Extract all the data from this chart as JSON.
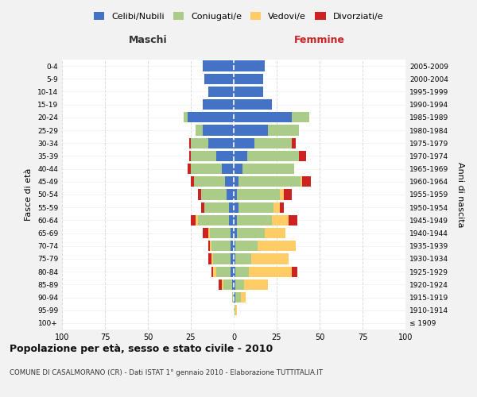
{
  "age_groups": [
    "100+",
    "95-99",
    "90-94",
    "85-89",
    "80-84",
    "75-79",
    "70-74",
    "65-69",
    "60-64",
    "55-59",
    "50-54",
    "45-49",
    "40-44",
    "35-39",
    "30-34",
    "25-29",
    "20-24",
    "15-19",
    "10-14",
    "5-9",
    "0-4"
  ],
  "birth_years": [
    "≤ 1909",
    "1910-1914",
    "1915-1919",
    "1920-1924",
    "1925-1929",
    "1930-1934",
    "1935-1939",
    "1940-1944",
    "1945-1949",
    "1950-1954",
    "1955-1959",
    "1960-1964",
    "1965-1969",
    "1970-1974",
    "1975-1979",
    "1980-1984",
    "1985-1989",
    "1990-1994",
    "1995-1999",
    "2000-2004",
    "2005-2009"
  ],
  "colors": {
    "celibi": "#4472C4",
    "coniugati": "#AACC88",
    "vedovi": "#FFCC66",
    "divorziati": "#CC2222"
  },
  "males": {
    "celibi": [
      0,
      0,
      0,
      1,
      2,
      2,
      2,
      2,
      3,
      3,
      4,
      5,
      7,
      10,
      15,
      18,
      27,
      18,
      15,
      17,
      18
    ],
    "coniugati": [
      0,
      0,
      1,
      5,
      8,
      10,
      11,
      12,
      18,
      14,
      15,
      18,
      18,
      15,
      10,
      4,
      2,
      0,
      0,
      0,
      0
    ],
    "vedovi": [
      0,
      0,
      0,
      1,
      2,
      1,
      1,
      1,
      1,
      0,
      0,
      0,
      0,
      0,
      0,
      0,
      0,
      0,
      0,
      0,
      0
    ],
    "divorziati": [
      0,
      0,
      0,
      2,
      1,
      2,
      1,
      3,
      3,
      2,
      2,
      2,
      2,
      1,
      1,
      0,
      0,
      0,
      0,
      0,
      0
    ]
  },
  "females": {
    "celibi": [
      0,
      0,
      1,
      1,
      1,
      1,
      1,
      2,
      2,
      3,
      2,
      3,
      5,
      8,
      12,
      20,
      34,
      22,
      17,
      17,
      18
    ],
    "coniugati": [
      0,
      1,
      3,
      5,
      8,
      9,
      13,
      16,
      20,
      20,
      25,
      36,
      30,
      30,
      22,
      18,
      10,
      0,
      0,
      0,
      0
    ],
    "vedovi": [
      0,
      1,
      3,
      14,
      25,
      22,
      22,
      12,
      10,
      4,
      2,
      1,
      0,
      0,
      0,
      0,
      0,
      0,
      0,
      0,
      0
    ],
    "divorziati": [
      0,
      0,
      0,
      0,
      3,
      0,
      0,
      0,
      5,
      2,
      5,
      5,
      0,
      4,
      2,
      0,
      0,
      0,
      0,
      0,
      0
    ]
  },
  "xlim": 100,
  "title": "Popolazione per età, sesso e stato civile - 2010",
  "subtitle": "COMUNE DI CASALMORANO (CR) - Dati ISTAT 1° gennaio 2010 - Elaborazione TUTTITALIA.IT",
  "xlabel_left": "Maschi",
  "xlabel_right": "Femmine",
  "ylabel_left": "Fasce di età",
  "ylabel_right": "Anni di nascita",
  "legend_labels": [
    "Celibi/Nubili",
    "Coniugati/e",
    "Vedovi/e",
    "Divorziati/e"
  ],
  "bg_color": "#F2F2F2",
  "plot_bg_color": "#FFFFFF"
}
